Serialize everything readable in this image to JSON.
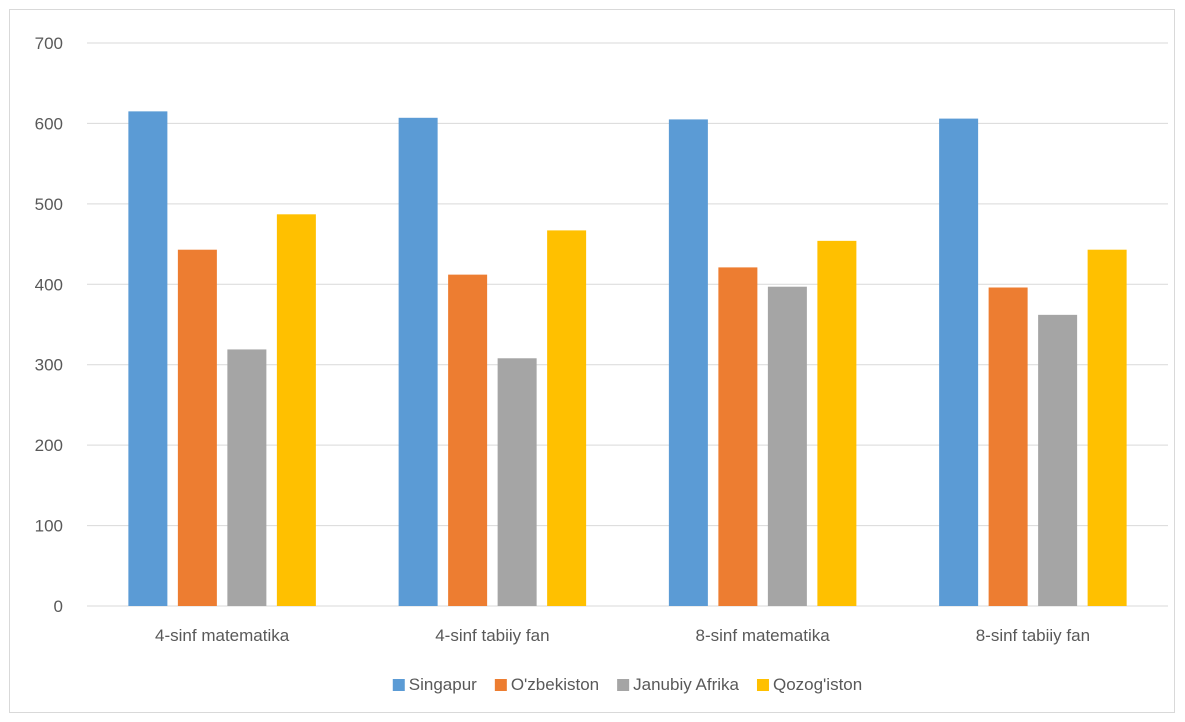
{
  "chart_data": {
    "type": "bar",
    "title": "",
    "xlabel": "",
    "ylabel": "",
    "categories": [
      "4-sinf matematika",
      "4-sinf tabiiy fan",
      "8-sinf matematika",
      "8-sinf tabiiy fan"
    ],
    "series": [
      {
        "name": "Singapur",
        "color": "#5b9bd5",
        "values": [
          615,
          607,
          605,
          606
        ]
      },
      {
        "name": "O'zbekiston",
        "color": "#ed7d31",
        "values": [
          443,
          412,
          421,
          396
        ]
      },
      {
        "name": "Janubiy Afrika",
        "color": "#a5a5a5",
        "values": [
          319,
          308,
          397,
          362
        ]
      },
      {
        "name": "Qozog'iston",
        "color": "#ffc000",
        "values": [
          487,
          467,
          454,
          443
        ]
      }
    ],
    "ylim": [
      0,
      700
    ],
    "yticks": [
      "0",
      "100",
      "200",
      "300",
      "400",
      "500",
      "600",
      "700"
    ],
    "grid": true,
    "legend_position": "bottom"
  }
}
